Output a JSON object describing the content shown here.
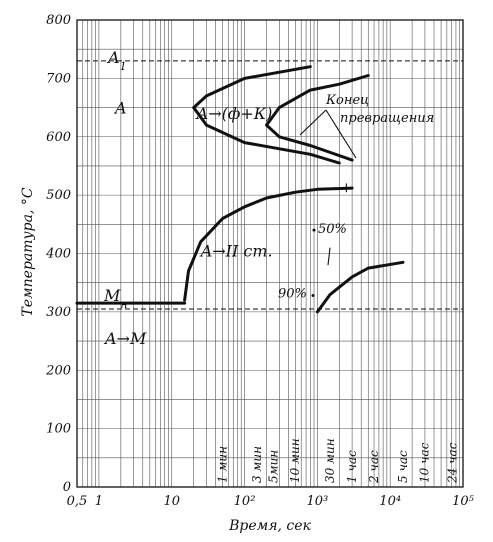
{
  "chart_data": {
    "type": "line",
    "xlabel": "Время, сек",
    "ylabel": "Температура, °С",
    "xscale": "log",
    "xlim": [
      0.5,
      100000
    ],
    "ylim": [
      0,
      800
    ],
    "x_ticks": [
      {
        "value": 0.5,
        "label": "0,5"
      },
      {
        "value": 1,
        "label": "1"
      },
      {
        "value": 10,
        "label": "10"
      },
      {
        "value": 100,
        "label": "10²"
      },
      {
        "value": 1000,
        "label": "10³"
      },
      {
        "value": 10000,
        "label": "10⁴"
      },
      {
        "value": 100000,
        "label": "10⁵"
      }
    ],
    "y_ticks": [
      0,
      100,
      200,
      300,
      400,
      500,
      600,
      700,
      800
    ],
    "time_labels": [
      {
        "value": 60,
        "label": "1 мин"
      },
      {
        "value": 180,
        "label": "3 мин"
      },
      {
        "value": 300,
        "label": "5мин"
      },
      {
        "value": 600,
        "label": "10 мин"
      },
      {
        "value": 1800,
        "label": "30 мин"
      },
      {
        "value": 3600,
        "label": "1 час"
      },
      {
        "value": 7200,
        "label": "2 час"
      },
      {
        "value": 18000,
        "label": "5 час"
      },
      {
        "value": 36000,
        "label": "10 час"
      },
      {
        "value": 86400,
        "label": "24 час"
      }
    ],
    "reference_lines": [
      {
        "name": "A1",
        "label": "A",
        "subscript": "1",
        "y": 730
      },
      {
        "name": "Mn",
        "label": "M",
        "subscript": "н",
        "y": 305
      }
    ],
    "region_labels": [
      "A",
      "A→(ф+К)",
      "A→II ст.",
      "A→M"
    ],
    "annotations": [
      "Конец",
      "превращения",
      "50%",
      "90%"
    ],
    "series": [
      {
        "id": "pearlite-start",
        "points": [
          [
            800,
            720
          ],
          [
            100,
            700
          ],
          [
            30,
            670
          ],
          [
            20,
            650
          ],
          [
            30,
            620
          ],
          [
            100,
            590
          ],
          [
            800,
            570
          ],
          [
            2000,
            555
          ]
        ]
      },
      {
        "id": "pearlite-end",
        "points": [
          [
            5000,
            705
          ],
          [
            2000,
            690
          ],
          [
            800,
            680
          ],
          [
            300,
            650
          ],
          [
            200,
            620
          ],
          [
            300,
            600
          ],
          [
            800,
            585
          ],
          [
            3000,
            560
          ]
        ]
      },
      {
        "id": "bainite-start",
        "points": [
          [
            15,
            320
          ],
          [
            17,
            370
          ],
          [
            25,
            420
          ],
          [
            50,
            460
          ],
          [
            100,
            480
          ],
          [
            200,
            495
          ],
          [
            500,
            505
          ],
          [
            1000,
            510
          ],
          [
            3000,
            512
          ]
        ]
      },
      {
        "id": "bainite-end",
        "points": [
          [
            1000,
            300
          ],
          [
            1500,
            330
          ],
          [
            3000,
            360
          ],
          [
            5000,
            375
          ],
          [
            15000,
            385
          ]
        ]
      },
      {
        "id": "ms",
        "points": [
          [
            0.5,
            315
          ],
          [
            15,
            315
          ]
        ]
      }
    ]
  }
}
